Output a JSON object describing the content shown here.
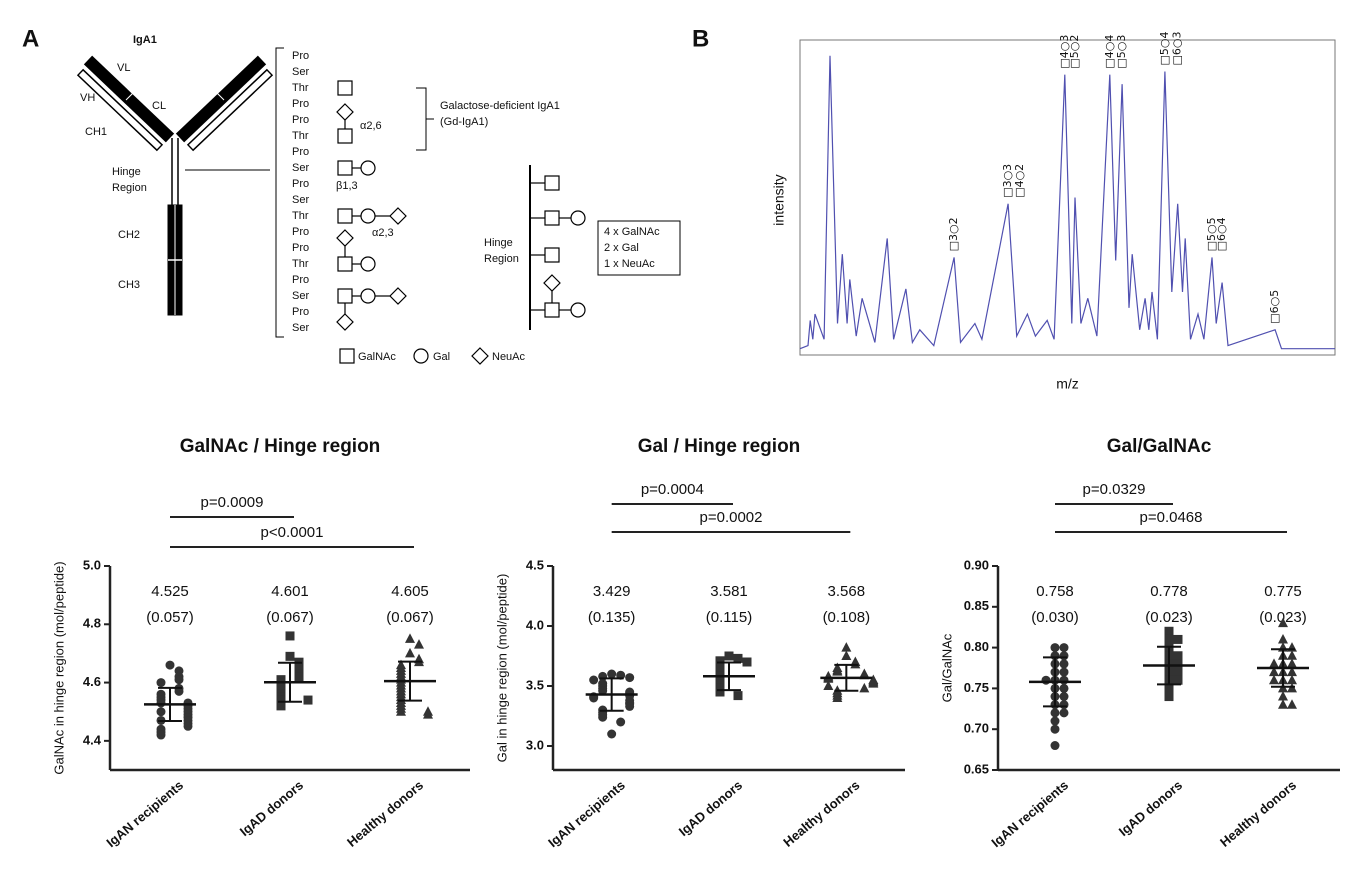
{
  "diagram": {
    "panel_label": "A",
    "title": "IgA1",
    "domains": {
      "vl": "VL",
      "vh": "VH",
      "cl": "CL",
      "ch1": "CH1",
      "ch2": "CH2",
      "ch3": "CH3"
    },
    "hinge_label": [
      "Hinge",
      "Region"
    ],
    "residues": [
      "Pro",
      "Ser",
      "Thr",
      "Pro",
      "Pro",
      "Thr",
      "Pro",
      "Ser",
      "Pro",
      "Ser",
      "Thr",
      "Pro",
      "Pro",
      "Thr",
      "Pro",
      "Ser",
      "Pro",
      "Ser"
    ],
    "linkages": [
      "α2,6",
      "β1,3",
      "α2,3"
    ],
    "gd_label": [
      "Galactose-deficient IgA1",
      "(Gd-IgA1)"
    ],
    "hinge_region_label": [
      "Hinge",
      "Region"
    ],
    "composition": [
      "4 x GalNAc",
      "2 x Gal",
      "1 x NeuAc"
    ],
    "legend": [
      "GalNAc",
      "Gal",
      "NeuAc"
    ]
  },
  "chart_data": [
    {
      "type": "line",
      "panel_label": "B",
      "x_label": "m/z",
      "y_label": "intensity",
      "color": "#5050b0",
      "xlim": [
        0,
        100
      ],
      "ylim": [
        0,
        1
      ],
      "x": [
        0,
        1.5,
        1.9,
        2.4,
        2.8,
        4.5,
        5.6,
        7,
        7.9,
        8.8,
        9.3,
        10.5,
        11.6,
        14,
        16.3,
        17.5,
        19.8,
        21,
        22.4,
        25,
        28.8,
        30,
        32.7,
        34,
        38.9,
        40.5,
        42.5,
        44,
        46.2,
        47.5,
        49.5,
        50.8,
        51.4,
        52.5,
        53.8,
        55.5,
        57.9,
        59,
        60.2,
        61.5,
        62.1,
        63.5,
        64.5,
        65.2,
        65.8,
        66.8,
        68.2,
        69.5,
        70.6,
        71.5,
        72,
        73,
        74.4,
        75.5,
        77,
        77.8,
        78.9,
        80,
        88.8,
        90,
        100
      ],
      "values": [
        0.02,
        0.03,
        0.11,
        0.05,
        0.13,
        0.05,
        0.95,
        0.1,
        0.32,
        0.1,
        0.24,
        0.06,
        0.18,
        0.04,
        0.37,
        0.05,
        0.21,
        0.04,
        0.08,
        0.03,
        0.31,
        0.04,
        0.1,
        0.05,
        0.48,
        0.06,
        0.13,
        0.06,
        0.11,
        0.05,
        0.89,
        0.1,
        0.5,
        0.1,
        0.18,
        0.06,
        0.89,
        0.3,
        0.86,
        0.15,
        0.32,
        0.08,
        0.18,
        0.08,
        0.2,
        0.05,
        0.9,
        0.2,
        0.48,
        0.2,
        0.37,
        0.05,
        0.13,
        0.05,
        0.31,
        0.1,
        0.23,
        0.03,
        0.08,
        0.02,
        0.02
      ],
      "annotations": [
        {
          "text": "□3○2",
          "x": 28.8
        },
        {
          "text": "□3○3",
          "x": 38.9
        },
        {
          "text": "□4○2",
          "x": 41.1
        },
        {
          "text": "□4○3",
          "x": 49.5
        },
        {
          "text": "□5○2",
          "x": 51.4
        },
        {
          "text": "□4○4",
          "x": 57.9
        },
        {
          "text": "□5○3",
          "x": 60.2
        },
        {
          "text": "□5○4",
          "x": 68.2
        },
        {
          "text": "□6○3",
          "x": 70.6
        },
        {
          "text": "□5○5",
          "x": 77
        },
        {
          "text": "□6○4",
          "x": 78.9
        },
        {
          "text": "□6○5",
          "x": 88.8
        }
      ]
    },
    {
      "type": "dot",
      "title": "GalNAc / Hinge region",
      "y_label": "GalNAc in hinge region (mol/peptide)",
      "ylim": [
        4.3,
        5.0
      ],
      "yticks": [
        4.4,
        4.6,
        4.8,
        {
          "value": 5,
          "label": "5.0"
        }
      ],
      "series": [
        {
          "name": "IgAN recipients",
          "marker": "circle",
          "color": "#333333",
          "mean": 4.525,
          "sd": 0.057,
          "sd_label": "(0.057)",
          "values": [
            4.66,
            4.64,
            4.62,
            4.61,
            4.6,
            4.58,
            4.57,
            4.56,
            4.55,
            4.54,
            4.53,
            4.53,
            4.52,
            4.51,
            4.5,
            4.5,
            4.49,
            4.48,
            4.47,
            4.47,
            4.46,
            4.45,
            4.44,
            4.43,
            4.42
          ]
        },
        {
          "name": "IgAD donors",
          "marker": "square",
          "color": "#333333",
          "mean": 4.601,
          "sd": 0.067,
          "sd_label": "(0.067)",
          "values": [
            4.76,
            4.69,
            4.67,
            4.65,
            4.63,
            4.62,
            4.61,
            4.6,
            4.59,
            4.58,
            4.57,
            4.56,
            4.55,
            4.54,
            4.54,
            4.52
          ]
        },
        {
          "name": "Healthy donors",
          "marker": "triangle",
          "color": "#333333",
          "mean": 4.605,
          "sd": 0.067,
          "sd_label": "(0.067)",
          "values": [
            4.75,
            4.73,
            4.7,
            4.68,
            4.67,
            4.66,
            4.65,
            4.64,
            4.63,
            4.62,
            4.61,
            4.6,
            4.59,
            4.58,
            4.57,
            4.56,
            4.55,
            4.54,
            4.53,
            4.52,
            4.51,
            4.5,
            4.5,
            4.49
          ]
        }
      ],
      "comparisons": [
        {
          "groups": [
            0,
            1
          ],
          "label": "p=0.0009"
        },
        {
          "groups": [
            0,
            2
          ],
          "label": "p<0.0001"
        }
      ]
    },
    {
      "type": "dot",
      "title": "Gal / Hinge region",
      "y_label": "Gal in hinge region (mol/peptide)",
      "ylim": [
        2.8,
        4.5
      ],
      "yticks": [
        {
          "value": 3,
          "label": "3.0"
        },
        3.5,
        {
          "value": 4,
          "label": "4.0"
        },
        4.5
      ],
      "series": [
        {
          "name": "IgAN recipients",
          "marker": "circle",
          "color": "#333333",
          "mean": 3.429,
          "sd": 0.135,
          "sd_label": "(0.135)",
          "values": [
            3.6,
            3.59,
            3.58,
            3.57,
            3.55,
            3.52,
            3.5,
            3.48,
            3.46,
            3.45,
            3.44,
            3.42,
            3.41,
            3.4,
            3.38,
            3.36,
            3.35,
            3.33,
            3.3,
            3.28,
            3.26,
            3.24,
            3.2,
            3.1
          ]
        },
        {
          "name": "IgAD donors",
          "marker": "square",
          "color": "#333333",
          "mean": 3.581,
          "sd": 0.115,
          "sd_label": "(0.115)",
          "values": [
            3.75,
            3.73,
            3.71,
            3.7,
            3.67,
            3.65,
            3.62,
            3.6,
            3.58,
            3.56,
            3.54,
            3.52,
            3.5,
            3.48,
            3.45,
            3.42
          ]
        },
        {
          "name": "Healthy donors",
          "marker": "triangle",
          "color": "#333333",
          "mean": 3.568,
          "sd": 0.108,
          "sd_label": "(0.108)",
          "values": [
            3.82,
            3.75,
            3.7,
            3.68,
            3.65,
            3.63,
            3.62,
            3.6,
            3.59,
            3.58,
            3.57,
            3.56,
            3.55,
            3.54,
            3.53,
            3.52,
            3.5,
            3.48,
            3.46,
            3.44,
            3.42,
            3.4
          ]
        }
      ],
      "comparisons": [
        {
          "groups": [
            0,
            1
          ],
          "label": "p=0.0004"
        },
        {
          "groups": [
            0,
            2
          ],
          "label": "p=0.0002"
        }
      ]
    },
    {
      "type": "dot",
      "title": "Gal/GalNAc",
      "y_label": "Gal/GalNAc",
      "ylim": [
        0.65,
        0.9
      ],
      "yticks": [
        0.65,
        {
          "value": 0.7,
          "label": "0.70"
        },
        0.75,
        {
          "value": 0.8,
          "label": "0.80"
        },
        0.85,
        {
          "value": 0.9,
          "label": "0.90"
        }
      ],
      "series": [
        {
          "name": "IgAN recipients",
          "marker": "circle",
          "color": "#333333",
          "mean": 0.758,
          "sd": 0.03,
          "sd_label": "(0.030)",
          "values": [
            0.8,
            0.8,
            0.79,
            0.79,
            0.78,
            0.78,
            0.77,
            0.77,
            0.76,
            0.76,
            0.76,
            0.75,
            0.75,
            0.74,
            0.74,
            0.73,
            0.73,
            0.72,
            0.72,
            0.71,
            0.7,
            0.68
          ]
        },
        {
          "name": "IgAD donors",
          "marker": "square",
          "color": "#333333",
          "mean": 0.778,
          "sd": 0.023,
          "sd_label": "(0.023)",
          "values": [
            0.82,
            0.81,
            0.81,
            0.8,
            0.79,
            0.79,
            0.78,
            0.78,
            0.77,
            0.77,
            0.76,
            0.76,
            0.75,
            0.74
          ]
        },
        {
          "name": "Healthy donors",
          "marker": "triangle",
          "color": "#333333",
          "mean": 0.775,
          "sd": 0.023,
          "sd_label": "(0.023)",
          "values": [
            0.83,
            0.81,
            0.8,
            0.8,
            0.79,
            0.79,
            0.78,
            0.78,
            0.78,
            0.77,
            0.77,
            0.77,
            0.76,
            0.76,
            0.76,
            0.75,
            0.75,
            0.74,
            0.73,
            0.73
          ]
        }
      ],
      "comparisons": [
        {
          "groups": [
            0,
            1
          ],
          "label": "p=0.0329"
        },
        {
          "groups": [
            0,
            2
          ],
          "label": "p=0.0468"
        }
      ]
    }
  ]
}
